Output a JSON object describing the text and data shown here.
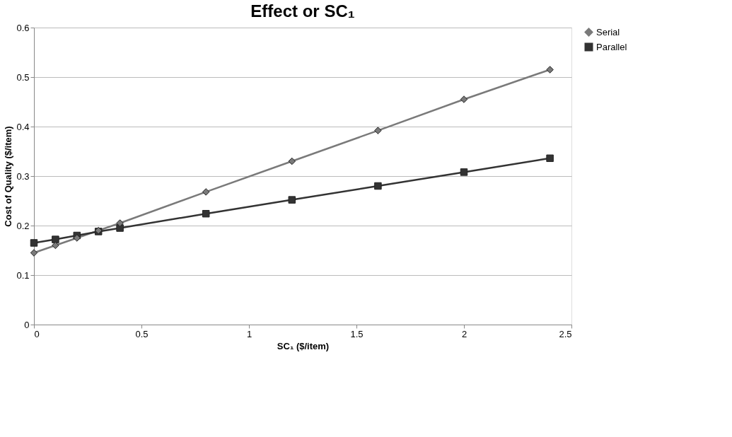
{
  "chart_data": {
    "type": "line",
    "title": "Effect or SC₁",
    "xlabel": "SC₁ ($/item)",
    "ylabel": "Cost of Quality ($/item)",
    "x": [
      0,
      0.1,
      0.2,
      0.3,
      0.4,
      0.8,
      1.2,
      1.6,
      2.0,
      2.4
    ],
    "series": [
      {
        "name": "Serial",
        "color": "#7a7a7a",
        "marker": "diamond",
        "values": [
          0.145,
          0.16,
          0.175,
          0.19,
          0.205,
          0.268,
          0.33,
          0.392,
          0.455,
          0.515
        ]
      },
      {
        "name": "Parallel",
        "color": "#333333",
        "marker": "square",
        "values": [
          0.165,
          0.172,
          0.18,
          0.188,
          0.195,
          0.224,
          0.252,
          0.28,
          0.308,
          0.336
        ]
      }
    ],
    "xlim": [
      0,
      2.5
    ],
    "xticks": [
      0,
      0.5,
      1,
      1.5,
      2,
      2.5
    ],
    "ylim": [
      0,
      0.6
    ],
    "yticks": [
      0,
      0.1,
      0.2,
      0.3,
      0.4,
      0.5,
      0.6
    ],
    "grid": "y",
    "legend": "right",
    "line_style": "solid"
  }
}
